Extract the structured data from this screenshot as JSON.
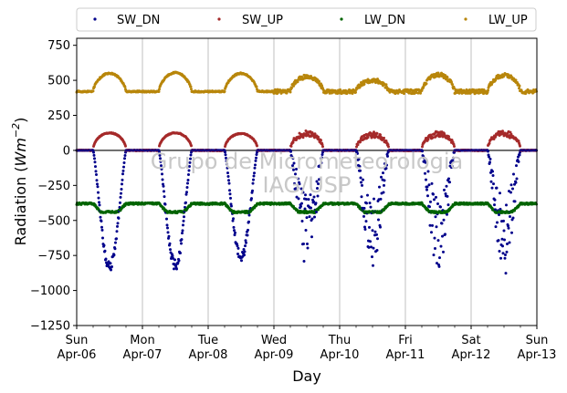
{
  "chart_data": {
    "type": "scatter",
    "xlabel": "Day",
    "ylabel_prefix": "Radiation (",
    "ylabel_unit": "Wm",
    "ylabel_exp": "−2",
    "ylabel_suffix": ")",
    "ylim": [
      -1250,
      800
    ],
    "yticks": [
      750,
      500,
      250,
      0,
      -250,
      -500,
      -750,
      -1000,
      -1250
    ],
    "ytick_labels": [
      "750",
      "500",
      "250",
      "0",
      "−250",
      "−500",
      "−750",
      "−1000",
      "−1250"
    ],
    "xlim": [
      0,
      7
    ],
    "xticks": [
      {
        "day": 0,
        "line1": "Sun",
        "line2": "Apr-06"
      },
      {
        "day": 1,
        "line1": "Mon",
        "line2": "Apr-07"
      },
      {
        "day": 2,
        "line1": "Tue",
        "line2": "Apr-08"
      },
      {
        "day": 3,
        "line1": "Wed",
        "line2": "Apr-09"
      },
      {
        "day": 4,
        "line1": "Thu",
        "line2": "Apr-10"
      },
      {
        "day": 5,
        "line1": "Fri",
        "line2": "Apr-11"
      },
      {
        "day": 6,
        "line1": "Sat",
        "line2": "Apr-12"
      },
      {
        "day": 7,
        "line1": "Sun",
        "line2": "Apr-13"
      }
    ],
    "grid_x": true,
    "zero_line": true,
    "legend_position": "top, outside plot",
    "watermark_line1": "Grupo de Micrometeorologia",
    "watermark_line2": "IAG/USP",
    "series": [
      {
        "name": "SW_DN",
        "color": "#00008b",
        "daily_peak_sample_days": [
          0,
          1,
          2,
          3,
          4,
          5,
          6
        ],
        "daily_peak_values": [
          -850,
          -840,
          -780,
          -850,
          -810,
          -840,
          -890
        ]
      },
      {
        "name": "SW_UP",
        "color": "#a52a2a",
        "daily_peak_values": [
          125,
          125,
          120,
          130,
          120,
          125,
          130
        ]
      },
      {
        "name": "LW_DN",
        "color": "#006400",
        "night_level": -380,
        "day_level": -440
      },
      {
        "name": "LW_UP",
        "color": "#b8860b",
        "night_level": 420,
        "daily_peak_values": [
          550,
          555,
          550,
          525,
          500,
          540,
          535
        ]
      }
    ]
  }
}
